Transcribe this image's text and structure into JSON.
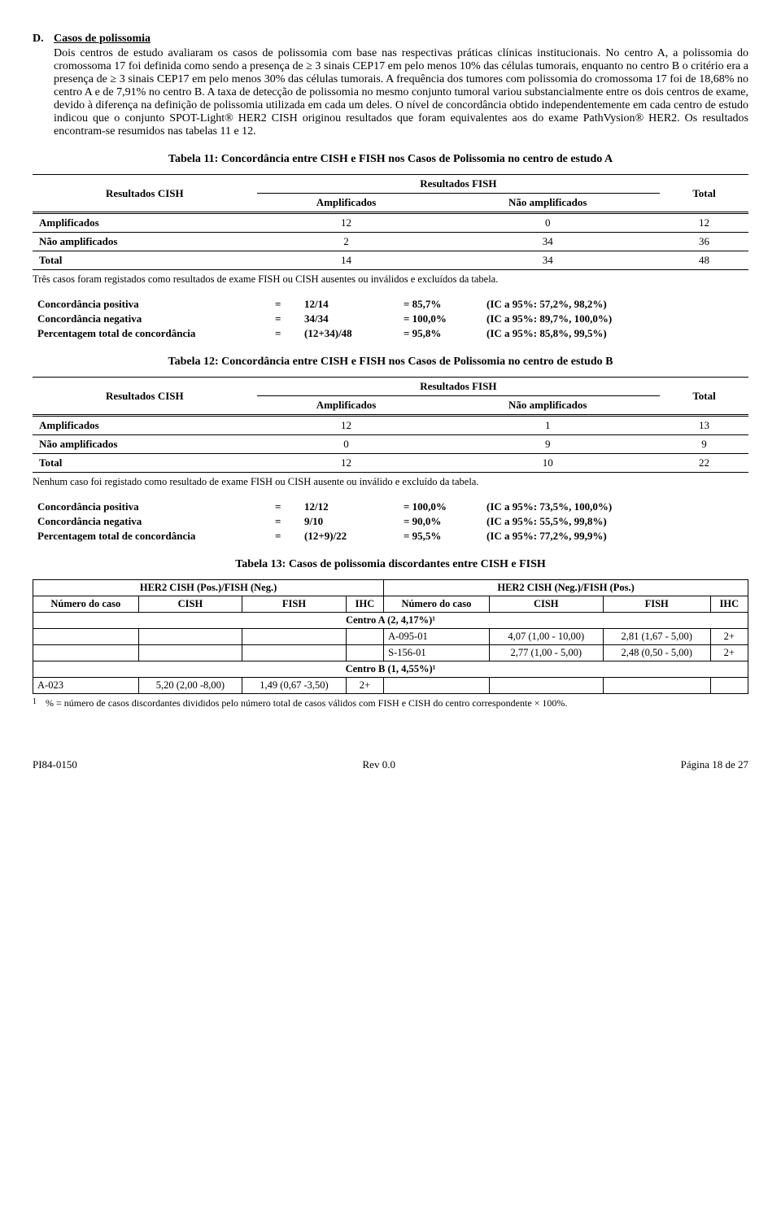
{
  "heading": {
    "letter": "D.",
    "title": "Casos de polissomia"
  },
  "paragraph": "Dois centros de estudo avaliaram os casos de polissomia com base nas respectivas práticas clínicas institucionais. No centro A, a polissomia do cromossoma 17 foi definida como sendo a presença de ≥ 3 sinais CEP17 em pelo menos 10% das células tumorais, enquanto no centro B o critério era a presença de ≥ 3 sinais CEP17 em pelo menos 30% das células tumorais. A frequência dos tumores com polissomia do cromossoma 17 foi de 18,68% no centro A e de 7,91% no centro B. A taxa de detecção de polissomia no mesmo conjunto tumoral variou substancialmente entre os dois centros de exame, devido à diferença na definição de polissomia utilizada em cada um deles. O nível de concordância obtido independentemente em cada centro de estudo indicou que o conjunto SPOT-Light® HER2 CISH originou resultados que foram equivalentes aos do exame PathVysion® HER2. Os resultados encontram-se resumidos nas tabelas 11 e 12.",
  "table11": {
    "title": "Tabela 11: Concordância entre CISH e FISH nos Casos de Polissomia no centro de estudo A",
    "col0": "Resultados CISH",
    "col_fish": "Resultados FISH",
    "col_amp": "Amplificados",
    "col_namp": "Não amplificados",
    "col_total": "Total",
    "rows": [
      {
        "label": "Amplificados",
        "a": "12",
        "b": "0",
        "t": "12"
      },
      {
        "label": "Não amplificados",
        "a": "2",
        "b": "34",
        "t": "36"
      },
      {
        "label": "Total",
        "a": "14",
        "b": "34",
        "t": "48"
      }
    ],
    "note": "Três casos foram registados como resultados de exame FISH ou CISH ausentes ou inválidos e excluídos da tabela.",
    "stats": [
      {
        "lbl": "Concordância positiva",
        "v1": "12/14",
        "v2": "= 85,7%",
        "ci": "(IC a 95%: 57,2%, 98,2%)"
      },
      {
        "lbl": "Concordância negativa",
        "v1": "34/34",
        "v2": "= 100,0%",
        "ci": "(IC a 95%: 89,7%, 100,0%)"
      },
      {
        "lbl": "Percentagem total de concordância",
        "v1": "(12+34)/48",
        "v2": "= 95,8%",
        "ci": "(IC a 95%: 85,8%, 99,5%)"
      }
    ]
  },
  "table12": {
    "title": "Tabela 12: Concordância entre CISH e FISH nos Casos de Polissomia no centro de estudo B",
    "col0": "Resultados CISH",
    "col_fish": "Resultados FISH",
    "col_amp": "Amplificados",
    "col_namp": "Não amplificados",
    "col_total": "Total",
    "rows": [
      {
        "label": "Amplificados",
        "a": "12",
        "b": "1",
        "t": "13"
      },
      {
        "label": "Não amplificados",
        "a": "0",
        "b": "9",
        "t": "9"
      },
      {
        "label": "Total",
        "a": "12",
        "b": "10",
        "t": "22"
      }
    ],
    "note": "Nenhum caso foi registado como resultado de exame FISH ou CISH ausente ou inválido e excluído da tabela.",
    "stats": [
      {
        "lbl": "Concordância positiva",
        "v1": "12/12",
        "v2": "= 100,0%",
        "ci": "(IC a 95%: 73,5%, 100,0%)"
      },
      {
        "lbl": "Concordância negativa",
        "v1": "9/10",
        "v2": "= 90,0%",
        "ci": "(IC a 95%: 55,5%, 99,8%)"
      },
      {
        "lbl": "Percentagem total de concordância",
        "v1": "(12+9)/22",
        "v2": "= 95,5%",
        "ci": "(IC a 95%: 77,2%, 99,9%)"
      }
    ]
  },
  "table13": {
    "title": "Tabela 13: Casos de polissomia discordantes entre CISH e FISH",
    "head_pos": "HER2 CISH (Pos.)/FISH (Neg.)",
    "head_neg": "HER2 CISH (Neg.)/FISH (Pos.)",
    "h_num": "Número do caso",
    "h_num2": "Número do caso",
    "h_cish": "CISH",
    "h_fish": "FISH",
    "h_ihc": "IHC",
    "centroA": "Centro A (2, 4,17%)¹",
    "centroB": "Centro B (1, 4,55%)¹",
    "rA1": {
      "num": "A-095-01",
      "cish": "4,07 (1,00 - 10,00)",
      "fish": "2,81 (1,67 - 5,00)",
      "ihc": "2+"
    },
    "rA2": {
      "num": "S-156-01",
      "cish": "2,77 (1,00 - 5,00)",
      "fish": "2,48 (0,50 - 5,00)",
      "ihc": "2+"
    },
    "rB1": {
      "num": "A-023",
      "cish": "5,20 (2,00 -8,00)",
      "fish": "1,49 (0,67 -3,50)",
      "ihc": "2+"
    },
    "footnote_sup": "1",
    "footnote": "% = número de casos discordantes divididos pelo número total de casos válidos com FISH e CISH do centro correspondente × 100%."
  },
  "footer": {
    "left": "PI84-0150",
    "center": "Rev 0.0",
    "right": "Página 18 de 27"
  }
}
